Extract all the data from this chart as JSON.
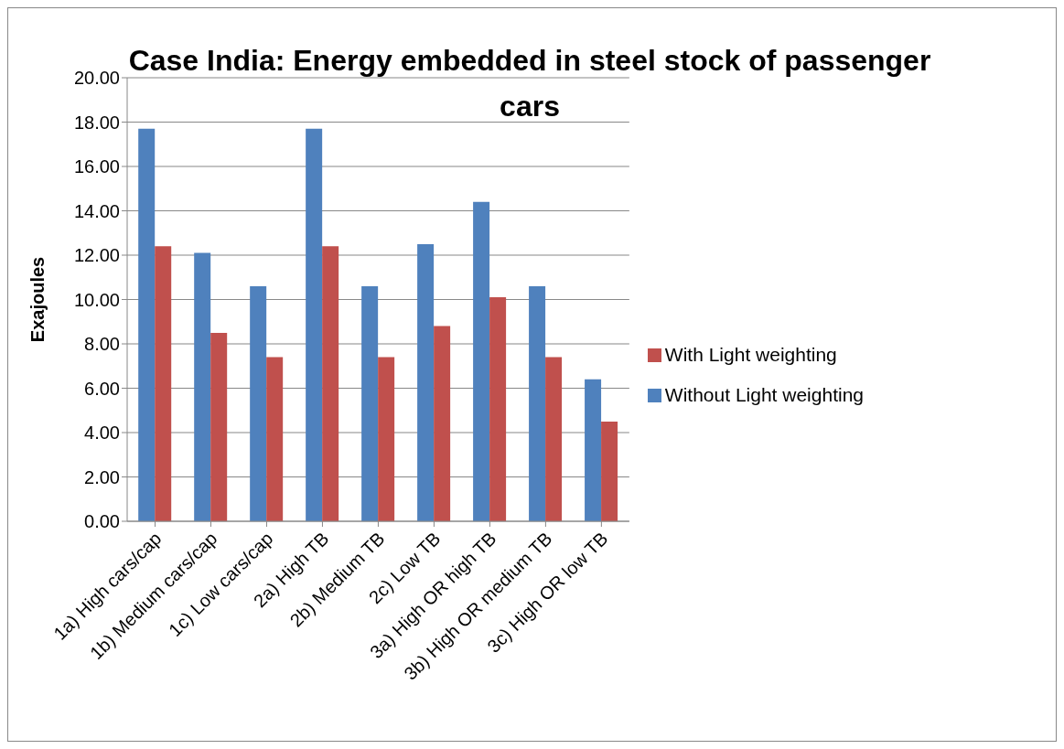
{
  "chart_data": {
    "type": "bar",
    "title": "Case India: Energy embedded in steel stock of passenger cars",
    "ylabel": "Exajoules",
    "categories": [
      "1a) High cars/cap",
      "1b) Medium cars/cap",
      "1c) Low cars/cap",
      "2a) High TB",
      "2b) Medium TB",
      "2c) Low TB",
      "3a) High OR high TB",
      "3b) High OR medium TB",
      "3c) High OR low TB"
    ],
    "series": [
      {
        "name": "Without Light weighting",
        "color": "#4f81bd",
        "values": [
          17.7,
          12.1,
          10.6,
          17.7,
          10.6,
          12.5,
          14.4,
          10.6,
          6.4
        ]
      },
      {
        "name": "With Light weighting",
        "color": "#c0504d",
        "values": [
          12.4,
          8.5,
          7.4,
          12.4,
          7.4,
          8.8,
          10.1,
          7.4,
          4.5
        ]
      }
    ],
    "ylim": [
      0,
      20
    ],
    "yticks": [
      {
        "value": 0,
        "label": "0.00"
      },
      {
        "value": 2,
        "label": "2.00"
      },
      {
        "value": 4,
        "label": "4.00"
      },
      {
        "value": 6,
        "label": "6.00"
      },
      {
        "value": 8,
        "label": "8.00"
      },
      {
        "value": 10,
        "label": "10.00"
      },
      {
        "value": 12,
        "label": "12.00"
      },
      {
        "value": 14,
        "label": "14.00"
      },
      {
        "value": 16,
        "label": "16.00"
      },
      {
        "value": 18,
        "label": "18.00"
      },
      {
        "value": 20,
        "label": "20.00"
      }
    ],
    "grid": "y",
    "legend": "right"
  }
}
